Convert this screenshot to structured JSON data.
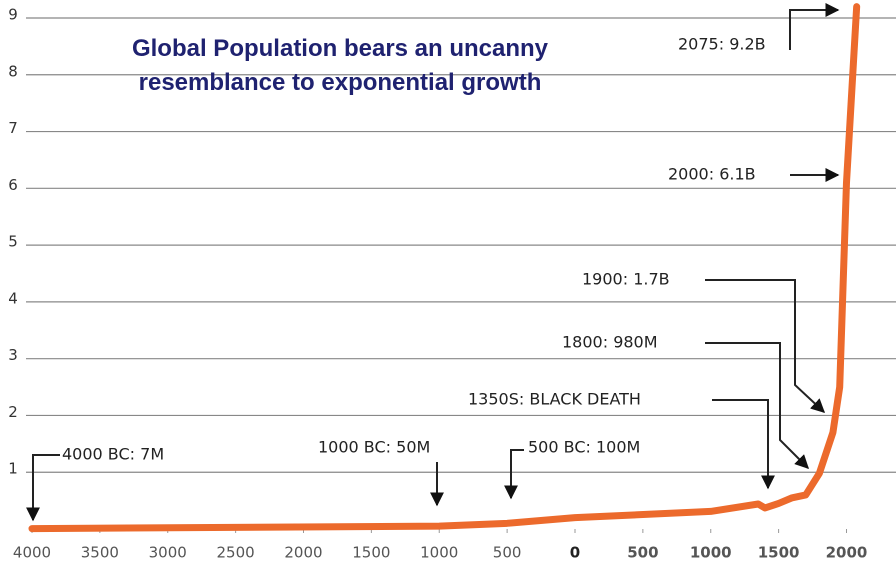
{
  "chart_data": {
    "type": "line",
    "title": "Global Population bears an uncanny resemblance to exponential growth",
    "x": [
      -4000,
      -1000,
      -500,
      0,
      1000,
      1350,
      1400,
      1500,
      1600,
      1700,
      1800,
      1900,
      1950,
      2000,
      2075
    ],
    "series": [
      {
        "name": "Global Population",
        "color": "#ec6a2c",
        "values": [
          0.007,
          0.05,
          0.1,
          0.2,
          0.31,
          0.44,
          0.37,
          0.45,
          0.55,
          0.6,
          0.98,
          1.7,
          2.5,
          6.1,
          9.2
        ]
      }
    ],
    "xlim": [
      -4000,
      2350
    ],
    "xticks": [
      {
        "value": -4000,
        "label": "4000"
      },
      {
        "value": -3500,
        "label": "3500"
      },
      {
        "value": -3000,
        "label": "3000"
      },
      {
        "value": -2500,
        "label": "2500"
      },
      {
        "value": -2000,
        "label": "2000"
      },
      {
        "value": -1500,
        "label": "1500"
      },
      {
        "value": -1000,
        "label": "1000"
      },
      {
        "value": -500,
        "label": "500"
      },
      0,
      500,
      1000,
      1500,
      2000
    ],
    "ylim": [
      0,
      9
    ],
    "yticks": [
      1,
      2,
      3,
      4,
      5,
      6,
      7,
      8,
      9
    ],
    "grid": true,
    "annotations": [
      {
        "text": "2075: 9.2B"
      },
      {
        "text": "2000: 6.1B"
      },
      {
        "text": "1900: 1.7B"
      },
      {
        "text": "1800: 980M"
      },
      {
        "text": "1350S: BLACK DEATH"
      },
      {
        "text": "4000 BC: 7M"
      },
      {
        "text": "1000 BC: 50M"
      },
      {
        "text": "500 BC: 100M"
      }
    ]
  }
}
